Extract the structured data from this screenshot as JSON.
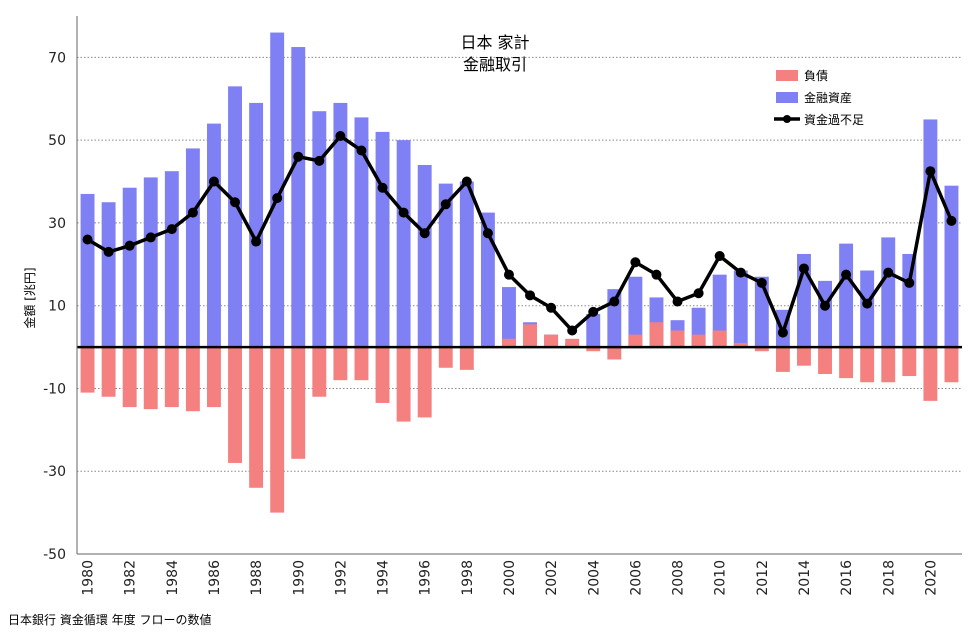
{
  "chart_data": {
    "type": "bar",
    "title": [
      "日本 家計",
      "金融取引"
    ],
    "ylabel": "金額 [兆円]",
    "source": "日本銀行 資金循環 年度 フローの数値",
    "ylim": [
      -50,
      80
    ],
    "y_ticks": [
      70,
      50,
      30,
      10,
      -10,
      -30,
      -50
    ],
    "grid": true,
    "legend_position": "top-right",
    "colors": {
      "liabilities": "#f58080",
      "assets": "#8080f5",
      "balance": "#000000"
    },
    "x": [
      1980,
      1981,
      1982,
      1983,
      1984,
      1985,
      1986,
      1987,
      1988,
      1989,
      1990,
      1991,
      1992,
      1993,
      1994,
      1995,
      1996,
      1997,
      1998,
      1999,
      2000,
      2001,
      2002,
      2003,
      2004,
      2005,
      2006,
      2007,
      2008,
      2009,
      2010,
      2011,
      2012,
      2013,
      2014,
      2015,
      2016,
      2017,
      2018,
      2019,
      2020,
      2021
    ],
    "x_tick_labels": [
      "1980",
      "1982",
      "1984",
      "1986",
      "1988",
      "1990",
      "1992",
      "1994",
      "1996",
      "1998",
      "2000",
      "2002",
      "2004",
      "2006",
      "2008",
      "2010",
      "2012",
      "2014",
      "2016",
      "2018",
      "2020"
    ],
    "series": [
      {
        "name": "負債",
        "kind": "bar",
        "values": [
          -11,
          -12,
          -14.5,
          -15,
          -14.5,
          -15.5,
          -14.5,
          -28,
          -34,
          -40,
          -27,
          -12,
          -8,
          -8,
          -13.5,
          -18,
          -17,
          -5,
          -5.5,
          0,
          2,
          5.5,
          3,
          2,
          -1,
          -3,
          3,
          6,
          4,
          3,
          4,
          1,
          -1,
          -6,
          -4.5,
          -6.5,
          -7.5,
          -8.5,
          -8.5,
          -7,
          -13,
          -8.5
        ]
      },
      {
        "name": "金融資産",
        "kind": "bar",
        "values": [
          37,
          35,
          38.5,
          41,
          42.5,
          48,
          54,
          63,
          59,
          76,
          72.5,
          57,
          59,
          55.5,
          52,
          50,
          44,
          39.5,
          40,
          32.5,
          14.5,
          6,
          3,
          1,
          8,
          14,
          17,
          12,
          6.5,
          9.5,
          17.5,
          18.5,
          17,
          9,
          22.5,
          16,
          25,
          18.5,
          26.5,
          22.5,
          55,
          39
        ]
      },
      {
        "name": "資金過不足",
        "kind": "line",
        "values": [
          26,
          23,
          24.5,
          26.5,
          28.5,
          32.5,
          40,
          35,
          25.5,
          36,
          46,
          45,
          51,
          47.5,
          38.5,
          32.5,
          27.5,
          34.5,
          40,
          27.5,
          17.5,
          12.5,
          9.5,
          4,
          8.5,
          11,
          20.5,
          17.5,
          11,
          13,
          22,
          18,
          15.5,
          3.5,
          19,
          10,
          17.5,
          10.5,
          18,
          15.5,
          42.5,
          30.5
        ]
      }
    ]
  }
}
